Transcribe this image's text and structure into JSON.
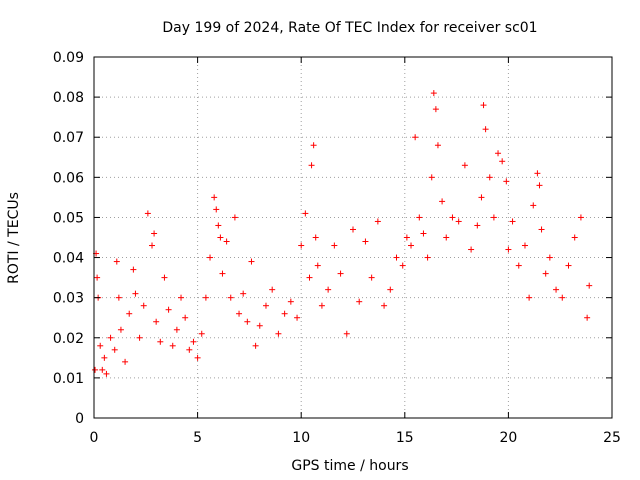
{
  "chart_data": {
    "type": "scatter",
    "title": "Day 199 of 2024, Rate Of TEC Index for receiver sc01",
    "xlabel": "GPS time / hours",
    "ylabel": "ROTI / TECUs",
    "xlim": [
      0,
      25
    ],
    "ylim": [
      0,
      0.09
    ],
    "xticks": [
      "0",
      "5",
      "10",
      "15",
      "20",
      "25"
    ],
    "yticks": [
      "0",
      "0.01",
      "0.02",
      "0.03",
      "0.04",
      "0.05",
      "0.06",
      "0.07",
      "0.08",
      "0.09"
    ],
    "grid": true,
    "marker": "+",
    "color": "#ff0000",
    "series": [
      {
        "name": "ROTI",
        "x": [
          0.05,
          0.1,
          0.15,
          0.2,
          0.3,
          0.4,
          0.5,
          0.6,
          0.8,
          1.0,
          1.1,
          1.2,
          1.3,
          1.5,
          1.7,
          1.9,
          2.0,
          2.2,
          2.4,
          2.6,
          2.8,
          2.9,
          3.0,
          3.2,
          3.4,
          3.6,
          3.8,
          4.0,
          4.2,
          4.4,
          4.6,
          4.8,
          5.0,
          5.2,
          5.4,
          5.6,
          5.8,
          5.9,
          6.0,
          6.1,
          6.2,
          6.4,
          6.6,
          6.8,
          7.0,
          7.2,
          7.4,
          7.6,
          7.8,
          8.0,
          8.3,
          8.6,
          8.9,
          9.2,
          9.5,
          9.8,
          10.0,
          10.2,
          10.4,
          10.5,
          10.6,
          10.7,
          10.8,
          11.0,
          11.3,
          11.6,
          11.9,
          12.2,
          12.5,
          12.8,
          13.1,
          13.4,
          13.7,
          14.0,
          14.3,
          14.6,
          14.9,
          15.1,
          15.3,
          15.5,
          15.7,
          15.9,
          16.1,
          16.3,
          16.4,
          16.5,
          16.6,
          16.8,
          17.0,
          17.3,
          17.6,
          17.9,
          18.2,
          18.5,
          18.7,
          18.8,
          18.9,
          19.1,
          19.3,
          19.5,
          19.7,
          19.9,
          20.0,
          20.2,
          20.5,
          20.8,
          21.0,
          21.2,
          21.4,
          21.5,
          21.6,
          21.8,
          22.0,
          22.3,
          22.6,
          22.9,
          23.2,
          23.5,
          23.8,
          23.9
        ],
        "y": [
          0.012,
          0.041,
          0.035,
          0.03,
          0.018,
          0.012,
          0.015,
          0.011,
          0.02,
          0.017,
          0.039,
          0.03,
          0.022,
          0.014,
          0.026,
          0.037,
          0.031,
          0.02,
          0.028,
          0.051,
          0.043,
          0.046,
          0.024,
          0.019,
          0.035,
          0.027,
          0.018,
          0.022,
          0.03,
          0.025,
          0.017,
          0.019,
          0.015,
          0.021,
          0.03,
          0.04,
          0.055,
          0.052,
          0.048,
          0.045,
          0.036,
          0.044,
          0.03,
          0.05,
          0.026,
          0.031,
          0.024,
          0.039,
          0.018,
          0.023,
          0.028,
          0.032,
          0.021,
          0.026,
          0.029,
          0.025,
          0.043,
          0.051,
          0.035,
          0.063,
          0.068,
          0.045,
          0.038,
          0.028,
          0.032,
          0.043,
          0.036,
          0.021,
          0.047,
          0.029,
          0.044,
          0.035,
          0.049,
          0.028,
          0.032,
          0.04,
          0.038,
          0.045,
          0.043,
          0.07,
          0.05,
          0.046,
          0.04,
          0.06,
          0.081,
          0.077,
          0.068,
          0.054,
          0.045,
          0.05,
          0.049,
          0.063,
          0.042,
          0.048,
          0.055,
          0.078,
          0.072,
          0.06,
          0.05,
          0.066,
          0.064,
          0.059,
          0.042,
          0.049,
          0.038,
          0.043,
          0.03,
          0.053,
          0.061,
          0.058,
          0.047,
          0.036,
          0.04,
          0.032,
          0.03,
          0.038,
          0.045,
          0.05,
          0.025,
          0.033
        ]
      }
    ]
  }
}
